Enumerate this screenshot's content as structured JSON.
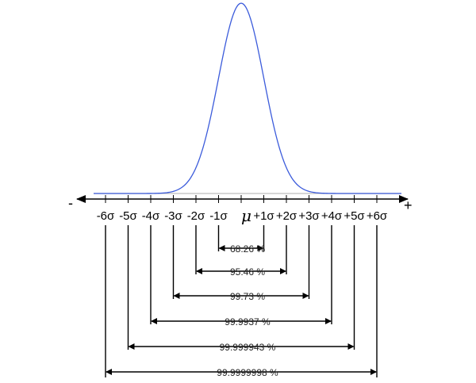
{
  "diagram": {
    "curve": {
      "color": "#3b5bdb",
      "baseline_color": "#bdbdbd"
    },
    "axis": {
      "minus_label": "-",
      "plus_label": "+",
      "tick_labels": [
        "-6σ",
        "-5σ",
        "-4σ",
        "-3σ",
        "-2σ",
        "-1σ",
        "+1σ",
        "+2σ",
        "+3σ",
        "+4σ",
        "+5σ",
        "+6σ"
      ],
      "mean_label": "μ"
    },
    "ranges": [
      {
        "sigma": 1,
        "label": "68.26 %"
      },
      {
        "sigma": 2,
        "label": "95.46 %"
      },
      {
        "sigma": 3,
        "label": "99.73 %"
      },
      {
        "sigma": 4,
        "label": "99.9937 %"
      },
      {
        "sigma": 5,
        "label": "99.999943 %"
      },
      {
        "sigma": 6,
        "label": "99.9999998 %"
      }
    ]
  }
}
